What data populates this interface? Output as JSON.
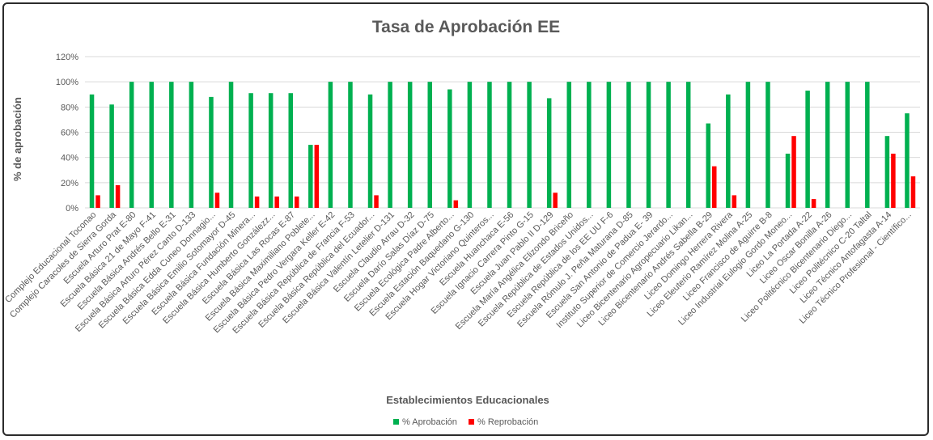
{
  "chart_data": {
    "type": "bar",
    "title": "Tasa de Aprobación EE",
    "xlabel": "Establecimientos Educacionales",
    "ylabel": "% de aprobación",
    "ylim": [
      0,
      120
    ],
    "yticks": [
      "0%",
      "20%",
      "40%",
      "60%",
      "80%",
      "100%",
      "120%"
    ],
    "grid": true,
    "legend_position": "bottom",
    "colors": {
      "aprobacion": "#00b050",
      "reprobacion": "#ff0000"
    },
    "categories": [
      "Complejo Educacional Toconao",
      "Complejo Caracoles de Sierra Gorda",
      "Escuela Arturo Prat E-80",
      "Escuela Básica 21 de Mayo F-41",
      "Escuela Básica Andrés Bello E-31",
      "Escuela Básica Arturo Pérez Canto D-133",
      "Escuela Básica Edda Cuneo Donnagio...",
      "Escuela Básica Emilio Sotomayor D-45",
      "Escuela Básica Fundación Minera...",
      "Escuela Básica Humberto Gonzálezz...",
      "Escuela Básica Las Rocas E-87",
      "Escuela Básica Maximiliano Poblete...",
      "Escuela Básica Pedro Vergara Keller E-42",
      "Escuela Básica República de Francia F-53",
      "Escuela Básica República del Ecuador...",
      "Escuela Básica Valentín Letelier D-131",
      "Escuela Claudio Arrau D-32",
      "Escuela Darío Salas Díaz D-75",
      "Escuela Ecológica Padre Alberto...",
      "Escuela Estación Baquedano G-130",
      "Escuela Hogar Victoriano Quinteros...",
      "Escuela Huanchaca E-56",
      "Escuela Ignacio Carrera Pinto G-15",
      "Escuela Juan Pablo II D-129",
      "Escuela María Angélica Elizondo Briceño",
      "Escuela República de Estados Unidos...",
      "Escuela República de los EE UU F-6",
      "Escuela Rómulo J. Peña Maturana D-85",
      "Escuela San Antonio de Padua E- 39",
      "Instituto Superior de Comercio Jerardo...",
      "Liceo Bicentenario Agropecuario Likan...",
      "Liceo Bicentenario Andrés Sabella B-29",
      "Liceo Domingo Herrera Rivera",
      "Liceo Eleuterio Ramírez Molina A-25",
      "Liceo Francisco de Aguirre B-8",
      "Liceo Industrial Eulogio Gordo Moneo...",
      "Liceo La Portada A-22",
      "Liceo Oscar Bonilla A-26",
      "Liceo Politécnico Bicentenario Diego...",
      "Liceo Politécnico C-20 Taltal",
      "Liceo Técnico Antofagasta A-14",
      "Liceo Técnico Profesional - Científico..."
    ],
    "series": [
      {
        "name": "% Aprobación",
        "values": [
          90,
          82,
          100,
          100,
          100,
          100,
          88,
          100,
          91,
          91,
          91,
          50,
          100,
          100,
          90,
          100,
          100,
          100,
          94,
          100,
          100,
          100,
          100,
          87,
          100,
          100,
          100,
          100,
          100,
          100,
          100,
          67,
          90,
          100,
          100,
          43,
          93,
          100,
          100,
          100,
          57,
          75
        ]
      },
      {
        "name": "% Reprobación",
        "values": [
          10,
          18,
          0,
          0,
          0,
          0,
          12,
          0,
          9,
          9,
          9,
          50,
          0,
          0,
          10,
          0,
          0,
          0,
          6,
          0,
          0,
          0,
          0,
          12,
          0,
          0,
          0,
          0,
          0,
          0,
          0,
          33,
          10,
          0,
          0,
          57,
          7,
          0,
          0,
          0,
          43,
          25
        ]
      }
    ]
  }
}
